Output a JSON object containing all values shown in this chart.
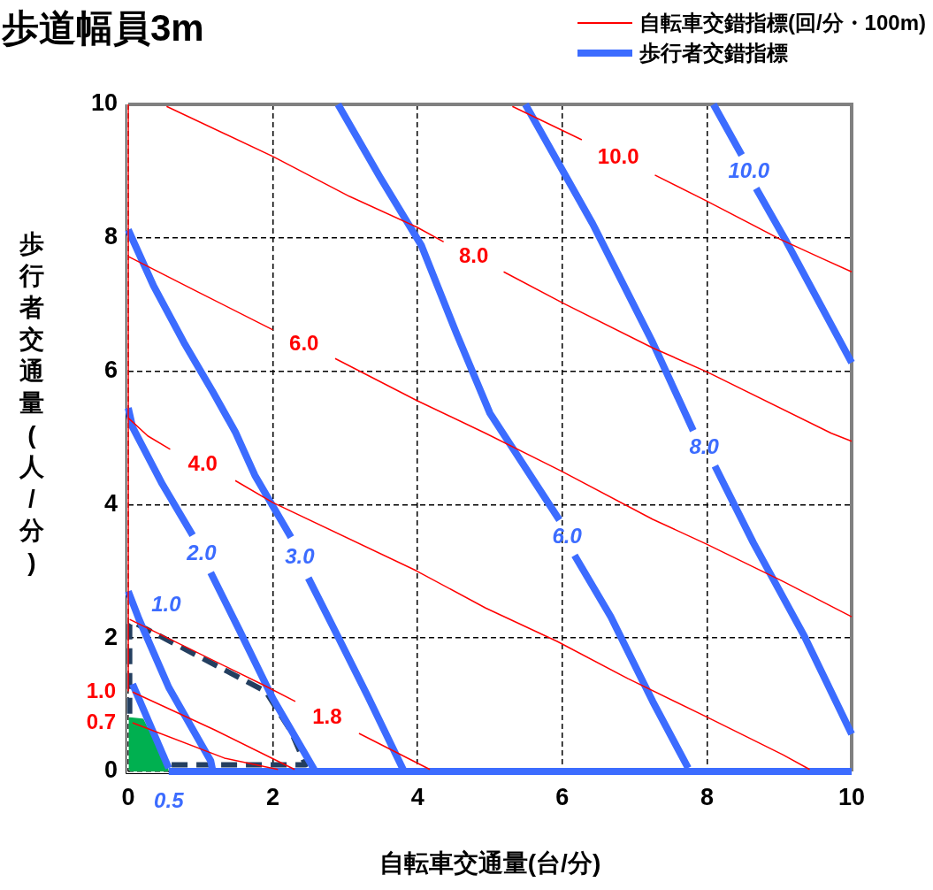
{
  "chart_data": {
    "type": "line",
    "title": "歩道幅員3m",
    "xlabel": "自転車交通量(台/分)",
    "ylabel": "歩行者交通量(人/分)",
    "xlim": [
      0,
      10
    ],
    "ylim": [
      0,
      10
    ],
    "xticks": [
      0,
      2,
      4,
      6,
      8,
      10
    ],
    "yticks": [
      0,
      2,
      4,
      6,
      8,
      10
    ],
    "grid": true,
    "legend": "top right",
    "marker": "none",
    "series": [
      {
        "name": "自転車交錯指標(回/分・100m)",
        "color": "#ff0000",
        "x": [
          0,
          0
        ],
        "values": [
          1.2,
          10
        ]
      },
      {
        "color": "#ff0000",
        "x": [
          0.06,
          1.33,
          2.07
        ],
        "values": [
          0.73,
          0.2,
          0.03
        ]
      },
      {
        "color": "#ff0000",
        "x": [
          0.06,
          1.2,
          2.3
        ],
        "values": [
          1.19,
          0.62,
          0.03
        ]
      },
      {
        "color": "#ff0000",
        "x": [
          0.02,
          1.88,
          2.31,
          null,
          3.19,
          4.17
        ],
        "values": [
          2.28,
          1.29,
          1.05,
          null,
          0.57,
          0.03
        ]
      },
      {
        "color": "#ff0000",
        "x": [
          0,
          0.27,
          0.58,
          null,
          1.48,
          2.0,
          3.98,
          4.94,
          5.93,
          6.91,
          7.99,
          9.05,
          9.42
        ],
        "values": [
          5.3,
          5.03,
          4.83,
          null,
          4.36,
          4.03,
          3.01,
          2.45,
          1.95,
          1.39,
          0.82,
          0.25,
          0.03
        ]
      },
      {
        "color": "#ff0000",
        "x": [
          0,
          0.96,
          2.0,
          null,
          2.86,
          3.99,
          4.94,
          5.99,
          7.25,
          7.99,
          9.05,
          10
        ],
        "values": [
          7.72,
          7.19,
          6.62,
          null,
          6.19,
          5.56,
          5.07,
          4.5,
          3.78,
          3.41,
          2.85,
          2.32
        ]
      },
      {
        "color": "#ff0000",
        "x": [
          0.53,
          2.0,
          3.06,
          3.99,
          4.36,
          null,
          5.19,
          6.01,
          7.25,
          8.0,
          9.72,
          10
        ],
        "values": [
          9.97,
          9.22,
          8.62,
          8.16,
          7.94,
          null,
          7.49,
          7.02,
          6.35,
          5.99,
          5.07,
          4.95
        ]
      },
      {
        "color": "#ff0000",
        "x": [
          5.31,
          6.27,
          null,
          7.28,
          8.0,
          9.01,
          9.59,
          10
        ],
        "values": [
          9.97,
          9.47,
          null,
          8.94,
          8.55,
          7.98,
          7.69,
          7.49
        ]
      },
      {
        "name": "歩行者交錯指標",
        "color": "#3c6cff",
        "x": [
          0.56,
          10
        ],
        "values": [
          0,
          0
        ]
      },
      {
        "color": "#3c6cff",
        "x": [
          0.06,
          0.56
        ],
        "values": [
          1.31,
          0.05
        ]
      },
      {
        "color": "#3c6cff",
        "x": [
          0,
          0.15,
          0.56,
          1.14,
          1.17
        ],
        "values": [
          2.7,
          2.28,
          1.26,
          0.16,
          0
        ]
      },
      {
        "color": "#3c6cff",
        "x": [
          0,
          0.06,
          0.47,
          0.89,
          null,
          1.14,
          1.54,
          2.0,
          2.57
        ],
        "values": [
          5.45,
          5.16,
          4.31,
          3.54,
          null,
          2.98,
          2.11,
          1.09,
          0.03
        ]
      },
      {
        "color": "#3c6cff",
        "x": [
          0,
          0.35,
          0.77,
          1.17,
          1.48,
          1.75,
          2.25,
          null,
          2.49,
          2.9,
          3.31,
          3.8
        ],
        "values": [
          8.12,
          7.28,
          6.43,
          5.69,
          5.09,
          4.44,
          3.51,
          null,
          2.9,
          2.02,
          1.13,
          0.03
        ]
      },
      {
        "color": "#3c6cff",
        "x": [
          2.9,
          3.48,
          4.05,
          4.54,
          5.0,
          5.96,
          null,
          6.17,
          6.67,
          7.25,
          7.74
        ],
        "values": [
          10,
          8.91,
          7.89,
          6.56,
          5.37,
          3.77,
          null,
          3.24,
          2.32,
          1.05,
          0.05
        ]
      },
      {
        "color": "#3c6cff",
        "x": [
          5.49,
          6.42,
          7.25,
          7.81,
          null,
          8.11,
          8.64,
          9.35,
          10
        ],
        "values": [
          10,
          8.21,
          6.43,
          5.11,
          null,
          4.58,
          3.43,
          2.02,
          0.56
        ]
      },
      {
        "color": "#3c6cff",
        "x": [
          8.09,
          8.48,
          null,
          8.68,
          9.1,
          10
        ],
        "values": [
          10,
          9.24,
          null,
          8.74,
          7.94,
          6.13
        ]
      },
      {
        "color": "#243f60",
        "line_style": "dashed",
        "x": [
          0.6,
          2.45,
          2.25,
          1.9,
          0.05,
          0.02,
          0.02
        ],
        "values": [
          0.1,
          0.1,
          0.6,
          1.2,
          2.25,
          2.2,
          0.85
        ]
      },
      {
        "type": "area",
        "color": "#00b050",
        "x": [
          0.02,
          0.02,
          0.2,
          0.55
        ],
        "values": [
          0.02,
          0.8,
          0.78,
          0.02
        ]
      }
    ],
    "annotations": [
      {
        "text": "10.0",
        "x": 6.27,
        "y": 9.47
      },
      {
        "text": "8.0",
        "x": 4.36,
        "y": 7.94
      },
      {
        "text": "6.0",
        "x": 2.0,
        "y": 6.62
      },
      {
        "text": "4.0",
        "x": 0.58,
        "y": 4.83
      },
      {
        "text": "1.8",
        "x": 2.31,
        "y": 1.05
      },
      {
        "text": "1.0",
        "x": 0.06,
        "y": 1.19
      },
      {
        "text": "0.7",
        "x": 0.06,
        "y": 0.73
      },
      {
        "text": "10.0",
        "x": 8.48,
        "y": 9.24
      },
      {
        "text": "8.0",
        "x": 7.81,
        "y": 5.11
      },
      {
        "text": "6.0",
        "x": 5.96,
        "y": 3.77
      },
      {
        "text": "3.0",
        "x": 2.25,
        "y": 3.51
      },
      {
        "text": "2.0",
        "x": 0.89,
        "y": 3.54
      },
      {
        "text": "1.0",
        "x": 0.15,
        "y": 2.28
      },
      {
        "text": "0.5",
        "x": 0.56,
        "y": 0.05
      }
    ]
  }
}
